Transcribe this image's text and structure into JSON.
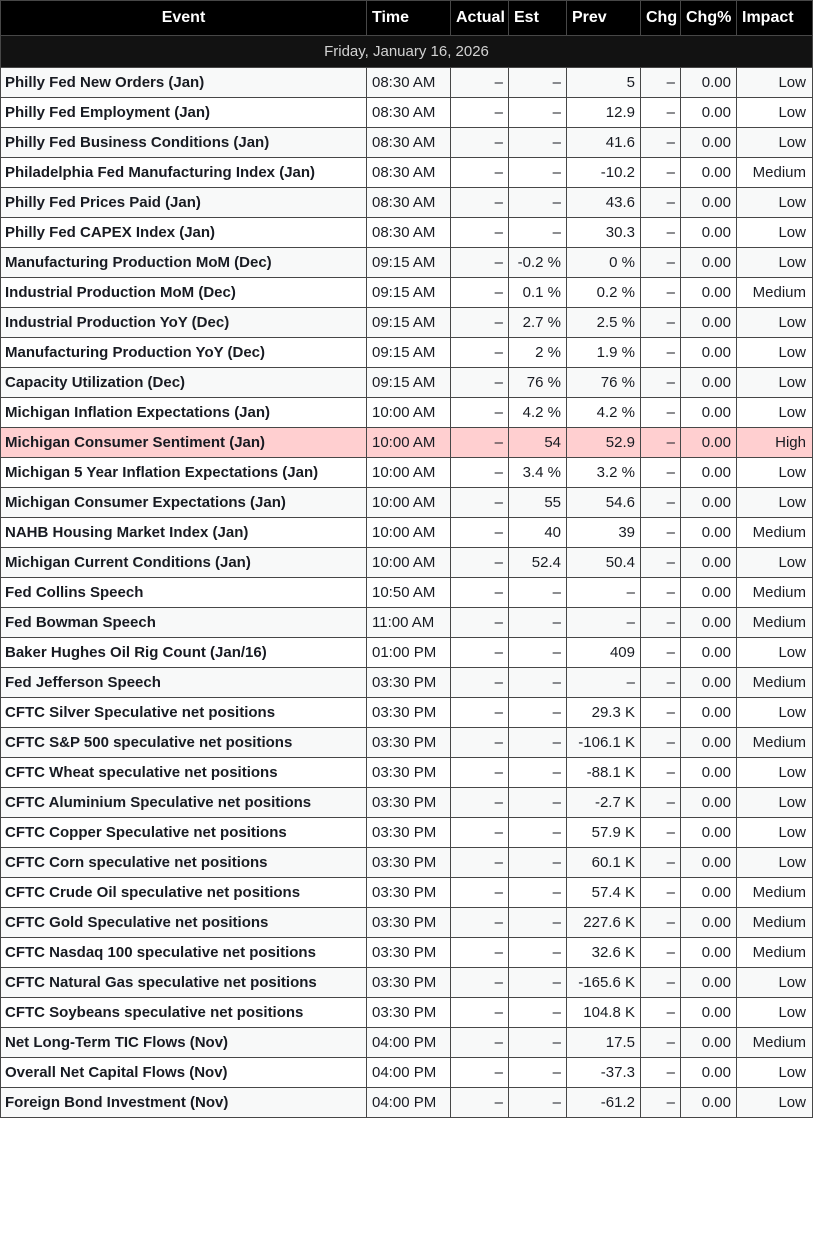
{
  "colors": {
    "header_bg": "#000000",
    "header_text": "#ffffff",
    "date_row_bg": "#121212",
    "date_row_text": "#d2d2d2",
    "row_bg": "#ffffff",
    "row_alt_bg": "#f8f9f9",
    "highlight_row_bg": "#ffcfd0",
    "border": "#474747",
    "cell_text": "#181b22"
  },
  "table": {
    "date_header": "Friday, January 16, 2026",
    "columns": [
      {
        "key": "event",
        "label": "Event"
      },
      {
        "key": "time",
        "label": "Time"
      },
      {
        "key": "actual",
        "label": "Actual"
      },
      {
        "key": "est",
        "label": "Est"
      },
      {
        "key": "prev",
        "label": "Prev"
      },
      {
        "key": "chg",
        "label": "Chg"
      },
      {
        "key": "chg_pct",
        "label": "Chg%"
      },
      {
        "key": "impact",
        "label": "Impact"
      }
    ],
    "rows": [
      {
        "event": "Philly Fed New Orders (Jan)",
        "time": "08:30 AM",
        "actual": "–",
        "est": "–",
        "prev": "5",
        "chg": "–",
        "chg_pct": "0.00",
        "impact": "Low",
        "highlight": false
      },
      {
        "event": "Philly Fed Employment (Jan)",
        "time": "08:30 AM",
        "actual": "–",
        "est": "–",
        "prev": "12.9",
        "chg": "–",
        "chg_pct": "0.00",
        "impact": "Low",
        "highlight": false
      },
      {
        "event": "Philly Fed Business Conditions (Jan)",
        "time": "08:30 AM",
        "actual": "–",
        "est": "–",
        "prev": "41.6",
        "chg": "–",
        "chg_pct": "0.00",
        "impact": "Low",
        "highlight": false
      },
      {
        "event": "Philadelphia Fed Manufacturing Index (Jan)",
        "time": "08:30 AM",
        "actual": "–",
        "est": "–",
        "prev": "-10.2",
        "chg": "–",
        "chg_pct": "0.00",
        "impact": "Medium",
        "highlight": false
      },
      {
        "event": "Philly Fed Prices Paid (Jan)",
        "time": "08:30 AM",
        "actual": "–",
        "est": "–",
        "prev": "43.6",
        "chg": "–",
        "chg_pct": "0.00",
        "impact": "Low",
        "highlight": false
      },
      {
        "event": "Philly Fed CAPEX Index (Jan)",
        "time": "08:30 AM",
        "actual": "–",
        "est": "–",
        "prev": "30.3",
        "chg": "–",
        "chg_pct": "0.00",
        "impact": "Low",
        "highlight": false
      },
      {
        "event": "Manufacturing Production MoM (Dec)",
        "time": "09:15 AM",
        "actual": "–",
        "est": "-0.2 %",
        "prev": "0 %",
        "chg": "–",
        "chg_pct": "0.00",
        "impact": "Low",
        "highlight": false
      },
      {
        "event": "Industrial Production MoM (Dec)",
        "time": "09:15 AM",
        "actual": "–",
        "est": "0.1 %",
        "prev": "0.2 %",
        "chg": "–",
        "chg_pct": "0.00",
        "impact": "Medium",
        "highlight": false
      },
      {
        "event": "Industrial Production YoY (Dec)",
        "time": "09:15 AM",
        "actual": "–",
        "est": "2.7 %",
        "prev": "2.5 %",
        "chg": "–",
        "chg_pct": "0.00",
        "impact": "Low",
        "highlight": false
      },
      {
        "event": "Manufacturing Production YoY (Dec)",
        "time": "09:15 AM",
        "actual": "–",
        "est": "2 %",
        "prev": "1.9 %",
        "chg": "–",
        "chg_pct": "0.00",
        "impact": "Low",
        "highlight": false
      },
      {
        "event": "Capacity Utilization (Dec)",
        "time": "09:15 AM",
        "actual": "–",
        "est": "76 %",
        "prev": "76 %",
        "chg": "–",
        "chg_pct": "0.00",
        "impact": "Low",
        "highlight": false
      },
      {
        "event": "Michigan Inflation Expectations (Jan)",
        "time": "10:00 AM",
        "actual": "–",
        "est": "4.2 %",
        "prev": "4.2 %",
        "chg": "–",
        "chg_pct": "0.00",
        "impact": "Low",
        "highlight": false
      },
      {
        "event": "Michigan Consumer Sentiment (Jan)",
        "time": "10:00 AM",
        "actual": "–",
        "est": "54",
        "prev": "52.9",
        "chg": "–",
        "chg_pct": "0.00",
        "impact": "High",
        "highlight": true
      },
      {
        "event": "Michigan 5 Year Inflation Expectations (Jan)",
        "time": "10:00 AM",
        "actual": "–",
        "est": "3.4 %",
        "prev": "3.2 %",
        "chg": "–",
        "chg_pct": "0.00",
        "impact": "Low",
        "highlight": false
      },
      {
        "event": "Michigan Consumer Expectations (Jan)",
        "time": "10:00 AM",
        "actual": "–",
        "est": "55",
        "prev": "54.6",
        "chg": "–",
        "chg_pct": "0.00",
        "impact": "Low",
        "highlight": false
      },
      {
        "event": "NAHB Housing Market Index (Jan)",
        "time": "10:00 AM",
        "actual": "–",
        "est": "40",
        "prev": "39",
        "chg": "–",
        "chg_pct": "0.00",
        "impact": "Medium",
        "highlight": false
      },
      {
        "event": "Michigan Current Conditions (Jan)",
        "time": "10:00 AM",
        "actual": "–",
        "est": "52.4",
        "prev": "50.4",
        "chg": "–",
        "chg_pct": "0.00",
        "impact": "Low",
        "highlight": false
      },
      {
        "event": "Fed Collins Speech",
        "time": "10:50 AM",
        "actual": "–",
        "est": "–",
        "prev": "–",
        "chg": "–",
        "chg_pct": "0.00",
        "impact": "Medium",
        "highlight": false
      },
      {
        "event": "Fed Bowman Speech",
        "time": "11:00 AM",
        "actual": "–",
        "est": "–",
        "prev": "–",
        "chg": "–",
        "chg_pct": "0.00",
        "impact": "Medium",
        "highlight": false
      },
      {
        "event": "Baker Hughes Oil Rig Count (Jan/16)",
        "time": "01:00 PM",
        "actual": "–",
        "est": "–",
        "prev": "409",
        "chg": "–",
        "chg_pct": "0.00",
        "impact": "Low",
        "highlight": false
      },
      {
        "event": "Fed Jefferson Speech",
        "time": "03:30 PM",
        "actual": "–",
        "est": "–",
        "prev": "–",
        "chg": "–",
        "chg_pct": "0.00",
        "impact": "Medium",
        "highlight": false
      },
      {
        "event": "CFTC Silver Speculative net positions",
        "time": "03:30 PM",
        "actual": "–",
        "est": "–",
        "prev": "29.3 K",
        "chg": "–",
        "chg_pct": "0.00",
        "impact": "Low",
        "highlight": false
      },
      {
        "event": "CFTC S&P 500 speculative net positions",
        "time": "03:30 PM",
        "actual": "–",
        "est": "–",
        "prev": "-106.1 K",
        "chg": "–",
        "chg_pct": "0.00",
        "impact": "Medium",
        "highlight": false
      },
      {
        "event": "CFTC Wheat speculative net positions",
        "time": "03:30 PM",
        "actual": "–",
        "est": "–",
        "prev": "-88.1 K",
        "chg": "–",
        "chg_pct": "0.00",
        "impact": "Low",
        "highlight": false
      },
      {
        "event": "CFTC Aluminium Speculative net positions",
        "time": "03:30 PM",
        "actual": "–",
        "est": "–",
        "prev": "-2.7 K",
        "chg": "–",
        "chg_pct": "0.00",
        "impact": "Low",
        "highlight": false
      },
      {
        "event": "CFTC Copper Speculative net positions",
        "time": "03:30 PM",
        "actual": "–",
        "est": "–",
        "prev": "57.9 K",
        "chg": "–",
        "chg_pct": "0.00",
        "impact": "Low",
        "highlight": false
      },
      {
        "event": "CFTC Corn speculative net positions",
        "time": "03:30 PM",
        "actual": "–",
        "est": "–",
        "prev": "60.1 K",
        "chg": "–",
        "chg_pct": "0.00",
        "impact": "Low",
        "highlight": false
      },
      {
        "event": "CFTC Crude Oil speculative net positions",
        "time": "03:30 PM",
        "actual": "–",
        "est": "–",
        "prev": "57.4 K",
        "chg": "–",
        "chg_pct": "0.00",
        "impact": "Medium",
        "highlight": false
      },
      {
        "event": "CFTC Gold Speculative net positions",
        "time": "03:30 PM",
        "actual": "–",
        "est": "–",
        "prev": "227.6 K",
        "chg": "–",
        "chg_pct": "0.00",
        "impact": "Medium",
        "highlight": false
      },
      {
        "event": "CFTC Nasdaq 100 speculative net positions",
        "time": "03:30 PM",
        "actual": "–",
        "est": "–",
        "prev": "32.6 K",
        "chg": "–",
        "chg_pct": "0.00",
        "impact": "Medium",
        "highlight": false
      },
      {
        "event": "CFTC Natural Gas speculative net positions",
        "time": "03:30 PM",
        "actual": "–",
        "est": "–",
        "prev": "-165.6 K",
        "chg": "–",
        "chg_pct": "0.00",
        "impact": "Low",
        "highlight": false
      },
      {
        "event": "CFTC Soybeans speculative net positions",
        "time": "03:30 PM",
        "actual": "–",
        "est": "–",
        "prev": "104.8 K",
        "chg": "–",
        "chg_pct": "0.00",
        "impact": "Low",
        "highlight": false
      },
      {
        "event": "Net Long-Term TIC Flows (Nov)",
        "time": "04:00 PM",
        "actual": "–",
        "est": "–",
        "prev": "17.5",
        "chg": "–",
        "chg_pct": "0.00",
        "impact": "Medium",
        "highlight": false
      },
      {
        "event": "Overall Net Capital Flows (Nov)",
        "time": "04:00 PM",
        "actual": "–",
        "est": "–",
        "prev": "-37.3",
        "chg": "–",
        "chg_pct": "0.00",
        "impact": "Low",
        "highlight": false
      },
      {
        "event": "Foreign Bond Investment (Nov)",
        "time": "04:00 PM",
        "actual": "–",
        "est": "–",
        "prev": "-61.2",
        "chg": "–",
        "chg_pct": "0.00",
        "impact": "Low",
        "highlight": false
      }
    ]
  }
}
